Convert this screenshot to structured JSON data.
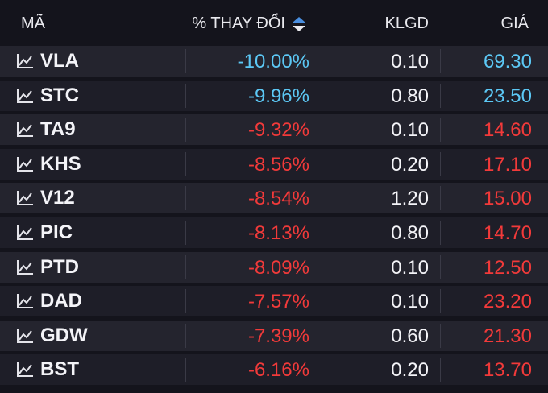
{
  "header": {
    "symbol": "MÃ",
    "change": "% THAY ĐỔI",
    "volume": "KLGD",
    "price": "GIÁ"
  },
  "colors": {
    "floor": "#5cc8f5",
    "down": "#f23a3a",
    "background": "#14141c"
  },
  "icons": {
    "row_icon": "line-chart-icon",
    "sort_icon": "sort-up-down-icon"
  },
  "rows": [
    {
      "symbol": "VLA",
      "change": "-10.00%",
      "volume": "0.10",
      "price": "69.30",
      "status": "floor"
    },
    {
      "symbol": "STC",
      "change": "-9.96%",
      "volume": "0.80",
      "price": "23.50",
      "status": "floor"
    },
    {
      "symbol": "TA9",
      "change": "-9.32%",
      "volume": "0.10",
      "price": "14.60",
      "status": "down"
    },
    {
      "symbol": "KHS",
      "change": "-8.56%",
      "volume": "0.20",
      "price": "17.10",
      "status": "down"
    },
    {
      "symbol": "V12",
      "change": "-8.54%",
      "volume": "1.20",
      "price": "15.00",
      "status": "down"
    },
    {
      "symbol": "PIC",
      "change": "-8.13%",
      "volume": "0.80",
      "price": "14.70",
      "status": "down"
    },
    {
      "symbol": "PTD",
      "change": "-8.09%",
      "volume": "0.10",
      "price": "12.50",
      "status": "down"
    },
    {
      "symbol": "DAD",
      "change": "-7.57%",
      "volume": "0.10",
      "price": "23.20",
      "status": "down"
    },
    {
      "symbol": "GDW",
      "change": "-7.39%",
      "volume": "0.60",
      "price": "21.30",
      "status": "down"
    },
    {
      "symbol": "BST",
      "change": "-6.16%",
      "volume": "0.20",
      "price": "13.70",
      "status": "down"
    }
  ]
}
